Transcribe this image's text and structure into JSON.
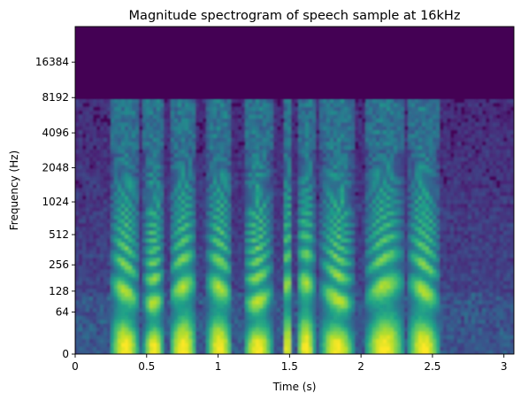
{
  "chart_data": {
    "type": "heatmap",
    "title": "Magnitude spectrogram of speech sample at 16kHz",
    "xlabel": "Time (s)",
    "ylabel": "Frequency (Hz)",
    "xlim": [
      0,
      3.07
    ],
    "x_ticks": [
      0,
      0.5,
      1,
      1.5,
      2,
      2.5,
      3
    ],
    "x_tick_labels": [
      "0",
      "0.5",
      "1",
      "1.5",
      "2",
      "2.5",
      "3"
    ],
    "y_scale": "symlog (base 2)",
    "y_ticks": [
      0,
      64,
      128,
      256,
      512,
      1024,
      2048,
      4096,
      8192,
      16384
    ],
    "y_tick_labels": [
      "0",
      "64",
      "128",
      "256",
      "512",
      "1024",
      "2048",
      "4096",
      "8192",
      "16384"
    ],
    "ylim_max": 32768,
    "colormap": "viridis",
    "colors": {
      "low": "#440154",
      "mid": "#21918c",
      "high": "#fde725"
    },
    "speech_segments_s": [
      [
        0.25,
        0.45
      ],
      [
        0.48,
        0.62
      ],
      [
        0.66,
        0.85
      ],
      [
        0.92,
        1.1
      ],
      [
        1.18,
        1.38
      ],
      [
        1.45,
        1.52
      ],
      [
        1.55,
        1.68
      ],
      [
        1.72,
        1.95
      ],
      [
        2.03,
        2.3
      ],
      [
        2.33,
        2.55
      ]
    ],
    "energy_max_hz": 8000,
    "grid": false,
    "legend": false
  }
}
